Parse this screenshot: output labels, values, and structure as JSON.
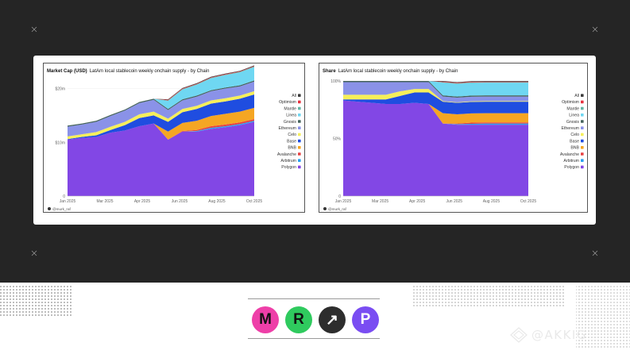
{
  "chart_data": [
    {
      "type": "area",
      "stacked": true,
      "title_bold": "Market Cap (USD)",
      "title": "LatAm local stablecoin weekly onchain supply - by Chain",
      "ylim": [
        0,
        22000000
      ],
      "yticks": [
        {
          "v": 0,
          "label": "0"
        },
        {
          "v": 10000000,
          "label": "$10m"
        },
        {
          "v": 20000000,
          "label": "$20m"
        }
      ],
      "xticks": [
        "Jan 2025",
        "Mar 2025",
        "Apr 2025",
        "Jun 2025",
        "Aug 2025",
        "Oct 2025"
      ],
      "x": [
        "2025-01-06",
        "2025-01-27",
        "2025-02-17",
        "2025-03-10",
        "2025-03-31",
        "2025-04-21",
        "2025-05-12",
        "2025-06-02",
        "2025-06-23",
        "2025-07-14",
        "2025-08-04",
        "2025-08-25",
        "2025-09-15",
        "2025-10-06"
      ],
      "series": [
        {
          "name": "Polygon",
          "values": [
            10.5,
            10.8,
            11.0,
            11.8,
            12.2,
            13.0,
            13.5,
            10.5,
            12.0,
            12.0,
            12.5,
            12.8,
            13.2,
            13.8
          ]
        },
        {
          "name": "Arbitrum",
          "values": [
            0.0,
            0.0,
            0.0,
            0.0,
            0.0,
            0.0,
            0.0,
            0.0,
            0.0,
            0.1,
            0.2,
            0.2,
            0.2,
            0.2
          ]
        },
        {
          "name": "Avalanche",
          "values": [
            0.0,
            0.0,
            0.0,
            0.0,
            0.0,
            0.0,
            0.0,
            0.0,
            0.1,
            0.2,
            0.3,
            0.3,
            0.3,
            0.3
          ]
        },
        {
          "name": "BNB",
          "values": [
            0.0,
            0.0,
            0.0,
            0.0,
            0.0,
            0.0,
            0.0,
            1.5,
            1.5,
            1.7,
            1.9,
            2.0,
            2.0,
            2.1
          ]
        },
        {
          "name": "Base",
          "values": [
            0.1,
            0.2,
            0.3,
            0.5,
            1.0,
            1.5,
            1.5,
            1.8,
            2.0,
            2.2,
            2.3,
            2.3,
            2.4,
            2.5
          ]
        },
        {
          "name": "Celo",
          "values": [
            0.5,
            0.5,
            0.6,
            0.6,
            0.6,
            0.7,
            0.7,
            0.6,
            0.6,
            0.6,
            0.6,
            0.6,
            0.6,
            0.6
          ]
        },
        {
          "name": "Ethereum",
          "values": [
            1.8,
            1.8,
            1.9,
            2.0,
            2.1,
            2.1,
            2.2,
            1.6,
            1.6,
            1.7,
            1.7,
            1.8,
            1.7,
            1.8
          ]
        },
        {
          "name": "Gnosis",
          "values": [
            0.2,
            0.2,
            0.2,
            0.2,
            0.2,
            0.2,
            0.2,
            0.2,
            0.2,
            0.2,
            0.2,
            0.2,
            0.2,
            0.2
          ]
        },
        {
          "name": "Linea",
          "values": [
            0.0,
            0.0,
            0.0,
            0.0,
            0.0,
            0.0,
            0.0,
            1.5,
            1.8,
            2.0,
            2.2,
            2.3,
            2.4,
            2.5
          ]
        },
        {
          "name": "Mantle",
          "values": [
            0.0,
            0.0,
            0.0,
            0.0,
            0.0,
            0.0,
            0.0,
            0.1,
            0.1,
            0.1,
            0.1,
            0.1,
            0.1,
            0.1
          ]
        },
        {
          "name": "Optimism",
          "values": [
            0.0,
            0.0,
            0.0,
            0.0,
            0.0,
            0.0,
            0.0,
            0.1,
            0.1,
            0.1,
            0.1,
            0.1,
            0.1,
            0.1
          ]
        },
        {
          "name": "All",
          "values": [
            0.0,
            0.0,
            0.0,
            0.0,
            0.0,
            0.0,
            0.0,
            0.1,
            0.1,
            0.1,
            0.1,
            0.1,
            0.1,
            0.1
          ]
        }
      ],
      "value_unit": "millions USD",
      "legend_position": "right",
      "credit": "@murk_raf"
    },
    {
      "type": "area",
      "stacked": true,
      "title_bold": "Share",
      "title": "LatAm local stablecoin weekly onchain supply - by Chain",
      "ylim": [
        0,
        100
      ],
      "yticks": [
        {
          "v": 0,
          "label": "0"
        },
        {
          "v": 50,
          "label": "50%"
        },
        {
          "v": 100,
          "label": "100%"
        }
      ],
      "xticks": [
        "Jan 2025",
        "Mar 2025",
        "Apr 2025",
        "Jun 2025",
        "Aug 2025",
        "Oct 2025"
      ],
      "x": [
        "2025-01-06",
        "2025-01-27",
        "2025-02-17",
        "2025-03-10",
        "2025-03-31",
        "2025-04-21",
        "2025-05-12",
        "2025-06-02",
        "2025-06-23",
        "2025-07-14",
        "2025-08-04",
        "2025-08-25",
        "2025-09-15",
        "2025-10-06"
      ],
      "series": [
        {
          "name": "Polygon",
          "values": [
            83,
            82,
            81,
            80,
            80,
            81,
            80,
            63,
            62,
            62,
            62,
            62,
            62,
            62
          ]
        },
        {
          "name": "Arbitrum",
          "values": [
            0,
            0,
            0,
            0,
            0,
            0,
            0,
            0,
            0.5,
            0.8,
            1,
            1,
            1,
            1
          ]
        },
        {
          "name": "Avalanche",
          "values": [
            0,
            0,
            0,
            0,
            0,
            0,
            0,
            0,
            0.5,
            1,
            1,
            1,
            1,
            1
          ]
        },
        {
          "name": "BNB",
          "values": [
            0,
            0,
            0,
            0,
            0,
            0,
            0,
            9,
            8,
            8,
            8,
            8,
            8,
            8
          ]
        },
        {
          "name": "Base",
          "values": [
            1,
            2,
            3,
            4,
            7,
            9,
            10,
            10,
            10,
            10,
            10,
            10,
            10,
            10
          ]
        },
        {
          "name": "Celo",
          "values": [
            4,
            4,
            4,
            4,
            4,
            3,
            3,
            0.5,
            0.5,
            0.5,
            0.5,
            0.5,
            0.5,
            0.5
          ]
        },
        {
          "name": "Ethereum",
          "values": [
            11,
            11,
            11,
            11,
            8,
            6,
            6,
            4,
            4,
            4,
            4,
            4,
            4,
            4
          ]
        },
        {
          "name": "Gnosis",
          "values": [
            1,
            1,
            1,
            1,
            1,
            1,
            1,
            1,
            1,
            1,
            1,
            1,
            1,
            1
          ]
        },
        {
          "name": "Linea",
          "values": [
            0,
            0,
            0,
            0,
            0,
            0,
            0,
            11,
            11,
            11,
            11,
            11,
            11,
            11
          ]
        },
        {
          "name": "Mantle",
          "values": [
            0,
            0,
            0,
            0,
            0,
            0,
            0,
            0.5,
            0.5,
            0.5,
            0.5,
            0.5,
            0.5,
            0.5
          ]
        },
        {
          "name": "Optimism",
          "values": [
            0,
            0,
            0,
            0,
            0,
            0,
            0,
            0.5,
            0.5,
            0.5,
            0.5,
            0.5,
            0.5,
            0.5
          ]
        },
        {
          "name": "All",
          "values": [
            0,
            0,
            0,
            0,
            0,
            0,
            0,
            0.5,
            0.5,
            0.5,
            0.5,
            0.5,
            0.5,
            0.5
          ]
        }
      ],
      "value_unit": "percent",
      "legend_position": "right",
      "credit": "@murk_raf"
    }
  ],
  "legend": [
    {
      "name": "All",
      "color": "#3d3d3d"
    },
    {
      "name": "Optimism",
      "color": "#e8323f"
    },
    {
      "name": "Mantle",
      "color": "#64b5a4"
    },
    {
      "name": "Linea",
      "color": "#6fd7f2"
    },
    {
      "name": "Gnosis",
      "color": "#44625c"
    },
    {
      "name": "Ethereum",
      "color": "#8a92e8"
    },
    {
      "name": "Celo",
      "color": "#f6ef5a"
    },
    {
      "name": "Base",
      "color": "#1f4de0"
    },
    {
      "name": "BNB",
      "color": "#f5a623"
    },
    {
      "name": "Avalanche",
      "color": "#e84142"
    },
    {
      "name": "Arbitrum",
      "color": "#28a0f0"
    },
    {
      "name": "Polygon",
      "color": "#8247e5"
    }
  ],
  "footer": {
    "logos": [
      {
        "letter": "M",
        "color": "#ee3fa8",
        "name": "m-logo"
      },
      {
        "letter": "R",
        "color": "#2fca5e",
        "name": "r-logo"
      },
      {
        "letter": "↗",
        "color": "#2d2d2d",
        "name": "arrow-logo"
      },
      {
        "letter": "P",
        "color": "#7a4df2",
        "name": "p-logo"
      }
    ],
    "watermark": "@AKKIG"
  }
}
